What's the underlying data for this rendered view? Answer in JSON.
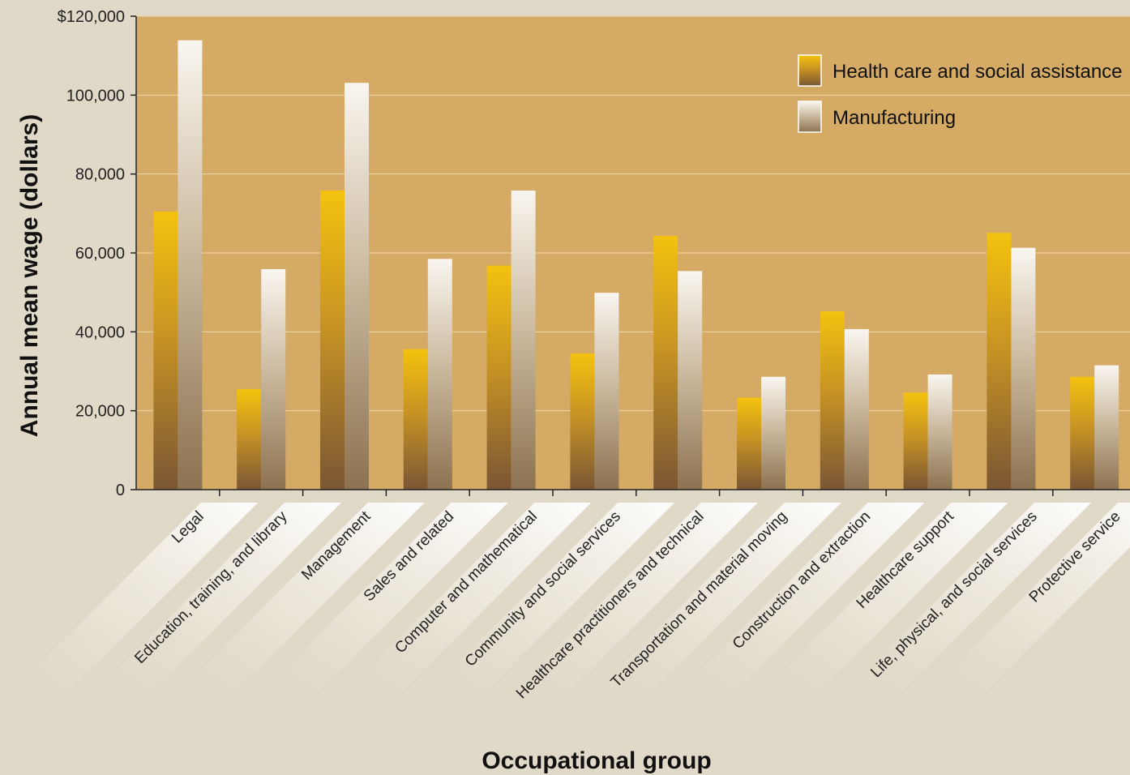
{
  "chart_data": {
    "type": "bar",
    "xlabel": "Occupational group",
    "ylabel": "Annual mean wage (dollars)",
    "ylim": [
      0,
      120000
    ],
    "y_ticks": [
      {
        "value": 0,
        "label": "0"
      },
      {
        "value": 20000,
        "label": "20,000"
      },
      {
        "value": 40000,
        "label": "40,000"
      },
      {
        "value": 60000,
        "label": "60,000"
      },
      {
        "value": 80000,
        "label": "80,000"
      },
      {
        "value": 100000,
        "label": "100,000"
      },
      {
        "value": 120000,
        "label": "$120,000"
      }
    ],
    "grid": true,
    "legend_position": "top-right",
    "categories": [
      "Legal",
      "Education, training, and library",
      "Management",
      "Sales and related",
      "Computer and mathematical",
      "Community and social services",
      "Healthcare practitioners and technical",
      "Transportation and material moving",
      "Construction and extraction",
      "Healthcare support",
      "Life, physical, and social services",
      "Protective service"
    ],
    "series": [
      {
        "name": "Health care and social assistance",
        "color": "#f4c20e",
        "values": [
          70500,
          25500,
          75800,
          35600,
          56800,
          34500,
          64300,
          23300,
          45200,
          24600,
          65100,
          28600
        ]
      },
      {
        "name": "Manufacturing",
        "color": "#f8f4ee",
        "values": [
          113900,
          55900,
          103100,
          58500,
          75800,
          49900,
          55400,
          28600,
          40700,
          29200,
          61300,
          31500
        ]
      }
    ]
  },
  "colors": {
    "page_background": "#e0d9c8",
    "plot_background": "#d4aa64",
    "grid": "#ecd9b0",
    "series1_top": "#f4c20e",
    "series1_bottom": "#7a5634",
    "series2_top": "#f8f4ee",
    "series2_bottom": "#8c7250"
  }
}
